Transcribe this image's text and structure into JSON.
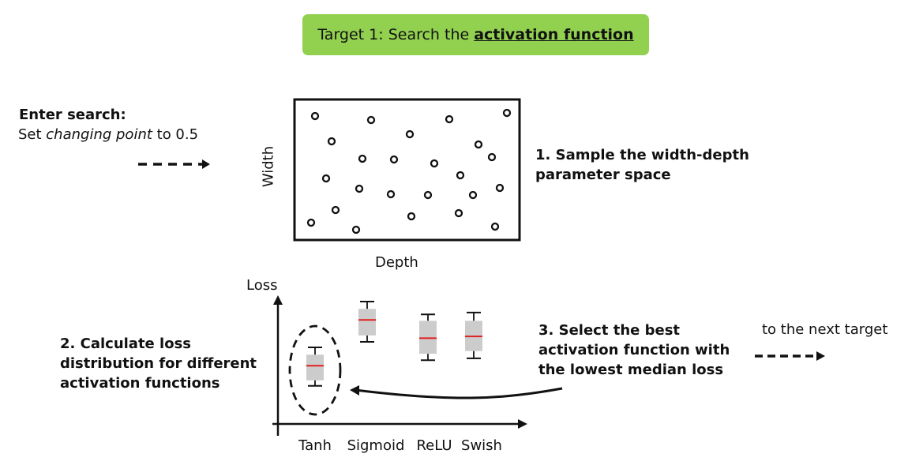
{
  "banner": {
    "prefix": "Target 1: Search the",
    "emphasis": "activation function",
    "color": "#92d050"
  },
  "search": {
    "title": "Enter search:",
    "pre": "Set ",
    "italic": "changing point",
    "post": " to 0.5"
  },
  "sample_plot": {
    "xlabel": "Depth",
    "ylabel": "Width"
  },
  "step1": [
    "1. Sample the width-depth",
    "parameter space"
  ],
  "step2": [
    "2. Calculate loss",
    "distribution for different",
    "activation functions"
  ],
  "step3": [
    "3. Select the best",
    "activation function with",
    "the lowest median loss"
  ],
  "next_target": "to the next target",
  "chart_data": {
    "type": "box",
    "ylabel": "Loss",
    "categories": [
      "Tanh",
      "Sigmoid",
      "ReLU",
      "Swish"
    ],
    "series": [
      {
        "category": "Tanh",
        "whisker_low": 0.08,
        "q1": 0.14,
        "median": 0.3,
        "q3": 0.42,
        "whisker_high": 0.5
      },
      {
        "category": "Sigmoid",
        "whisker_low": 0.56,
        "q1": 0.63,
        "median": 0.8,
        "q3": 0.92,
        "whisker_high": 1.0
      },
      {
        "category": "ReLU",
        "whisker_low": 0.36,
        "q1": 0.43,
        "median": 0.6,
        "q3": 0.79,
        "whisker_high": 0.86
      },
      {
        "category": "Swish",
        "whisker_low": 0.38,
        "q1": 0.46,
        "median": 0.62,
        "q3": 0.79,
        "whisker_high": 0.88
      }
    ],
    "highlight": "Tanh",
    "box_color": "#cccccc",
    "median_color": "#e02020"
  }
}
